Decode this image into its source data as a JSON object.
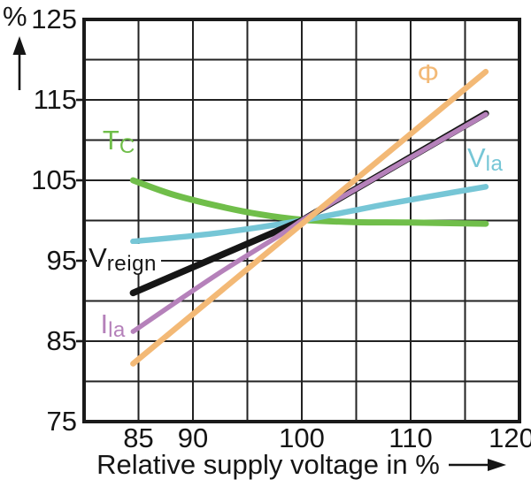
{
  "figure": {
    "y_axis_unit": "%",
    "x_axis_title": "Relative supply voltage in %"
  },
  "chart_data": {
    "type": "line",
    "title": "",
    "xlabel": "Relative supply voltage in %",
    "ylabel": "%",
    "xlim": [
      80,
      120
    ],
    "ylim": [
      75,
      125
    ],
    "x_grid_step": 5,
    "y_grid_step": 5,
    "grid": true,
    "legend_position": "labels-on-curves",
    "frame_color": "#1a1a1a",
    "grid_color": "#222222",
    "x_tick_values": [
      85,
      90,
      100,
      110,
      120
    ],
    "x_tick_labels": [
      "85",
      "90",
      "100",
      "110",
      "120"
    ],
    "y_tick_values": [
      125,
      115,
      105,
      95,
      85,
      75
    ],
    "y_tick_labels": [
      "125",
      "115",
      "105",
      "95",
      "85",
      "75"
    ],
    "y_tick_mark_values": [
      115,
      105,
      95,
      85
    ],
    "series": [
      {
        "id": "tc",
        "name": "T",
        "sub": "C",
        "color": "#70BE4A",
        "width": 7,
        "label_xy": [
          81.7,
          111.7
        ],
        "points": [
          [
            84.5,
            105.0
          ],
          [
            88,
            103.3
          ],
          [
            92,
            101.9
          ],
          [
            96,
            100.8
          ],
          [
            100,
            100.1
          ],
          [
            105,
            99.8
          ],
          [
            110,
            99.75
          ],
          [
            116.9,
            99.6
          ]
        ]
      },
      {
        "id": "vla",
        "name": "V",
        "sub": "la",
        "color": "#76C6D6",
        "width": 6.5,
        "label_xy": [
          115.2,
          109.5
        ],
        "points": [
          [
            84.5,
            97.4
          ],
          [
            92,
            98.4
          ],
          [
            100,
            100.0
          ],
          [
            108,
            102.1
          ],
          [
            116.9,
            104.2
          ]
        ]
      },
      {
        "id": "vreign",
        "name": "V",
        "sub": "reign",
        "color": "#161616",
        "width": 7.5,
        "label_xy": [
          80.25,
          97.1
        ],
        "label_bg": "#ffffff",
        "points": [
          [
            84.5,
            91.0
          ],
          [
            98,
            98.85
          ],
          [
            100,
            100.0
          ],
          [
            102,
            101.6
          ],
          [
            116.9,
            113.3
          ]
        ]
      },
      {
        "id": "ila",
        "name": "I",
        "sub": "la",
        "color": "#B581BA",
        "width": 5.5,
        "label_xy": [
          81.5,
          88.9
        ],
        "points": [
          [
            84.5,
            86.2
          ],
          [
            92,
            93.1
          ],
          [
            98,
            98.2
          ],
          [
            100,
            100.0
          ],
          [
            102,
            101.6
          ],
          [
            116.9,
            113.2
          ]
        ]
      },
      {
        "id": "phi",
        "name": "Φ",
        "sub": "",
        "color": "#F3B976",
        "width": 6.5,
        "label_xy": [
          110.6,
          119.9
        ],
        "points": [
          [
            84.5,
            82.2
          ],
          [
            116.9,
            118.5
          ]
        ]
      }
    ]
  }
}
